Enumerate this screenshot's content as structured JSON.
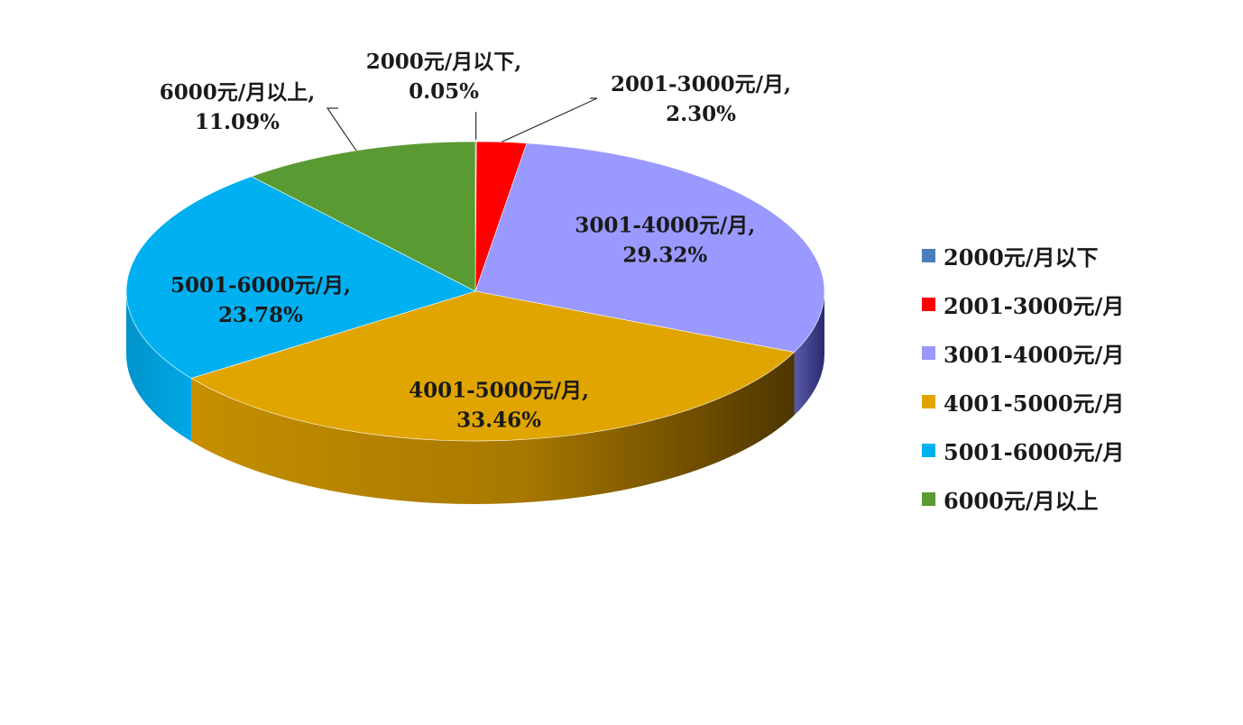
{
  "chart_data": {
    "type": "pie",
    "title": "",
    "legend_position": "right",
    "categories": [
      "2000元/月以下",
      "2001-3000元/月",
      "3001-4000元/月",
      "4001-5000元/月",
      "5001-6000元/月",
      "6000元/月以上"
    ],
    "values": [
      0.05,
      2.3,
      29.32,
      33.46,
      23.78,
      11.09
    ],
    "value_unit": "%",
    "colors": [
      "#4a7ebb",
      "#ff0000",
      "#9999ff",
      "#e0a500",
      "#00b0f0",
      "#5a9a32"
    ],
    "data_labels": [
      {
        "name": "2000元/月以下,",
        "value": "0.05%"
      },
      {
        "name": "2001-3000元/月,",
        "value": "2.30%"
      },
      {
        "name": "3001-4000元/月,",
        "value": "29.32%"
      },
      {
        "name": "4001-5000元/月,",
        "value": "33.46%"
      },
      {
        "name": "5001-6000元/月,",
        "value": "23.78%"
      },
      {
        "name": "6000元/月以上,",
        "value": "11.09%"
      }
    ]
  }
}
